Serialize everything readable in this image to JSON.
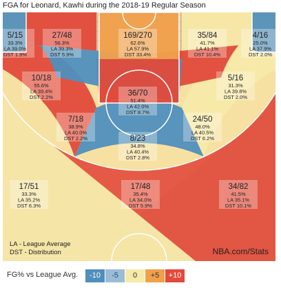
{
  "title": "FGA for Leonard, Kawhi during the 2018-19 Regular Season",
  "colors": {
    "minus10": "#4f8fbd",
    "minus5": "#9bbcd6",
    "zero": "#f7e9a8",
    "plus5": "#f0a04b",
    "plus10": "#e24a3b",
    "corner3_light": "#b9cfde",
    "court_line": "#ffffff",
    "wood": "#dcc29a"
  },
  "chart_data": {
    "type": "heatmap",
    "title": "FGA for Leonard, Kawhi during the 2018-19 Regular Season",
    "zones": [
      {
        "id": "left-corner-3",
        "fg": "5/15",
        "pct": "33.3%",
        "la": "LA 39.0%",
        "dst": "DST 1.9%",
        "rating": "minus10"
      },
      {
        "id": "left-baseline-mid",
        "fg": "27/48",
        "pct": "56.3%",
        "la": "LA 39.3%",
        "dst": "DST 5.9%",
        "rating": "plus10"
      },
      {
        "id": "restricted-area",
        "fg": "169/270",
        "pct": "62.6%",
        "la": "LA 57.9%",
        "dst": "DST 33.4%",
        "rating": "plus5"
      },
      {
        "id": "right-baseline-mid",
        "fg": "35/84",
        "pct": "41.7%",
        "la": "LA 41.1%",
        "dst": "DST 10.4%",
        "rating": "zero"
      },
      {
        "id": "right-corner-3",
        "fg": "4/16",
        "pct": "25.0%",
        "la": "LA 37.9%",
        "dst": "DST 2.0%",
        "rating": "minus10"
      },
      {
        "id": "left-short-mid",
        "fg": "10/18",
        "pct": "55.6%",
        "la": "LA 39.4%",
        "dst": "DST 2.2%",
        "rating": "plus10"
      },
      {
        "id": "right-short-mid",
        "fg": "5/16",
        "pct": "31.3%",
        "la": "LA 39.8%",
        "dst": "DST 2.0%",
        "rating": "minus10"
      },
      {
        "id": "paint-non-ra",
        "fg": "36/70",
        "pct": "51.4%",
        "la": "LA 42.0%",
        "dst": "DST 8.7%",
        "rating": "plus10"
      },
      {
        "id": "left-elbow",
        "fg": "7/18",
        "pct": "38.9%",
        "la": "LA 40.0%",
        "dst": "DST 2.2%",
        "rating": "zero"
      },
      {
        "id": "right-elbow",
        "fg": "24/50",
        "pct": "48.0%",
        "la": "LA 40.5%",
        "dst": "DST 6.2%",
        "rating": "plus10"
      },
      {
        "id": "top-key-mid",
        "fg": "8/23",
        "pct": "34.8%",
        "la": "LA 40.4%",
        "dst": "DST 2.8%",
        "rating": "minus10"
      },
      {
        "id": "left-wing-3",
        "fg": "17/51",
        "pct": "33.3%",
        "la": "LA 35.2%",
        "dst": "DST 6.3%",
        "rating": "zero"
      },
      {
        "id": "top-3",
        "fg": "17/48",
        "pct": "35.4%",
        "la": "LA 34.0%",
        "dst": "DST 5.9%",
        "rating": "zero"
      },
      {
        "id": "right-wing-3",
        "fg": "34/82",
        "pct": "41.5%",
        "la": "LA 35.1%",
        "dst": "DST 10.1%",
        "rating": "plus10"
      }
    ]
  },
  "notes": {
    "line1": "LA - League Average",
    "line2": "DST - Distribution",
    "source": "NBA.com/Stats"
  },
  "legend": {
    "title": "FG% vs League Avg.",
    "items": [
      {
        "label": "-10",
        "color": "#4f8fbd",
        "text_color": "#ffffff"
      },
      {
        "label": "-5",
        "color": "#9bbcd6",
        "text_color": "#1f4e78"
      },
      {
        "label": "0",
        "color": "#f7e9a8",
        "text_color": "#333333"
      },
      {
        "label": "+5",
        "color": "#f0a04b",
        "text_color": "#333333"
      },
      {
        "label": "+10",
        "color": "#e24a3b",
        "text_color": "#ffffff"
      }
    ]
  }
}
